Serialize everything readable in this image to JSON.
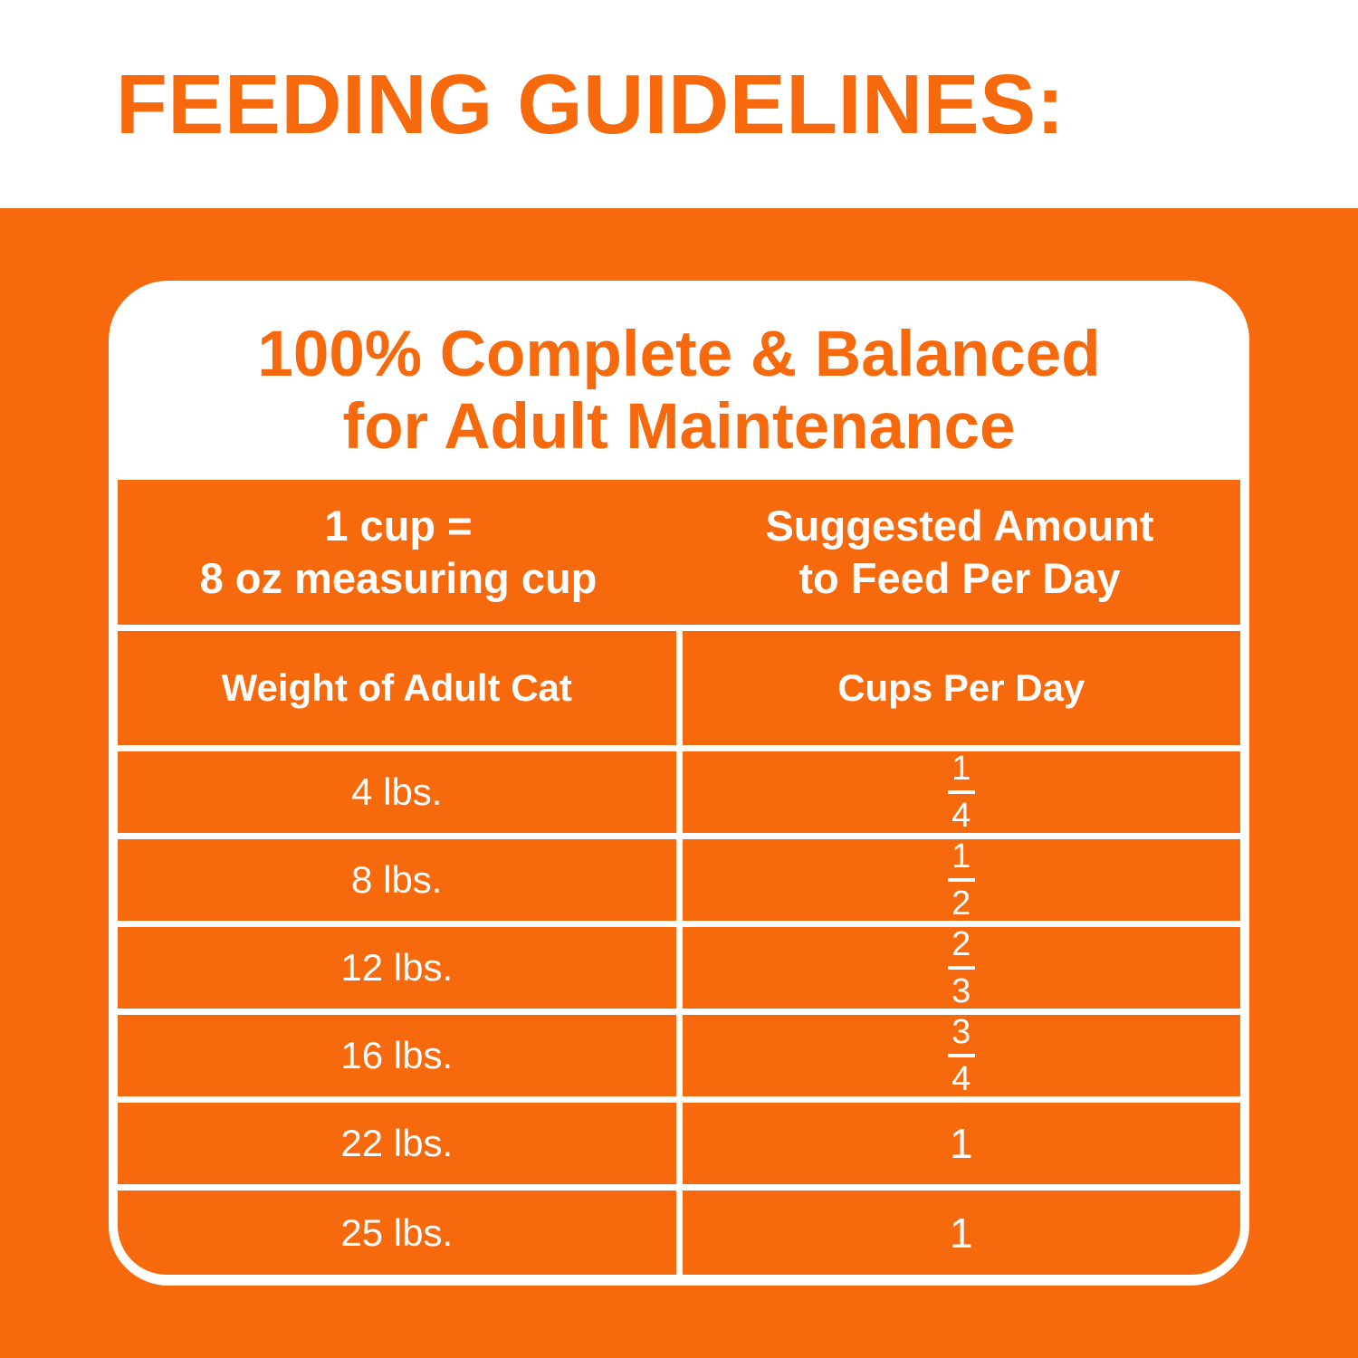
{
  "colors": {
    "orange": "#f6690c",
    "white": "#ffffff"
  },
  "heading": "FEEDING GUIDELINES:",
  "card": {
    "title_line1": "100% Complete & Balanced",
    "title_line2": "for Adult Maintenance",
    "table": {
      "header": {
        "left_line1": "1 cup =",
        "left_line2": "8 oz measuring cup",
        "right_line1": "Suggested Amount",
        "right_line2": "to Feed Per Day"
      },
      "column_headers": {
        "weight": "Weight of Adult Cat",
        "cups": "Cups Per Day"
      },
      "rows": [
        {
          "weight": "4 lbs.",
          "cups_numerator": "1",
          "cups_denominator": "4"
        },
        {
          "weight": "8 lbs.",
          "cups_numerator": "1",
          "cups_denominator": "2"
        },
        {
          "weight": "12 lbs.",
          "cups_numerator": "2",
          "cups_denominator": "3"
        },
        {
          "weight": "16 lbs.",
          "cups_numerator": "3",
          "cups_denominator": "4"
        },
        {
          "weight": "22 lbs.",
          "cups": "1"
        },
        {
          "weight": "25 lbs.",
          "cups": "1"
        }
      ]
    }
  }
}
